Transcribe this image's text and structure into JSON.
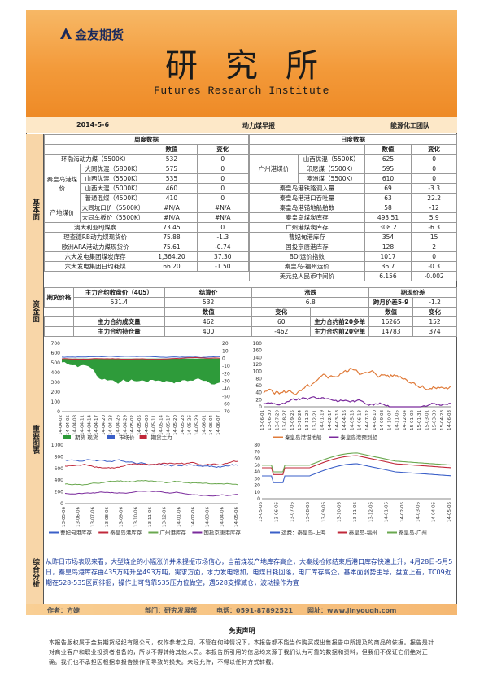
{
  "header": {
    "logo": "金友期货",
    "title": "研究所",
    "subtitle": "Futures Research Institute"
  },
  "report": {
    "date": "2014-5-6",
    "name": "动力煤早报",
    "team": "能源化工团队"
  },
  "sections": {
    "basic": "基本面",
    "futures": "资金面",
    "charts": "重要图表",
    "analysis": "综合分析"
  },
  "weekly": {
    "title": "周度数据",
    "col_value": "数值",
    "col_change": "变化",
    "rows": [
      {
        "label": "环渤海动力煤（5500K）",
        "value": "532",
        "change": "0"
      },
      {
        "group": "秦皇岛港煤价",
        "label": "大同优混（5800K）",
        "value": "575",
        "change": "0"
      },
      {
        "group": "",
        "label": "山西优混（5500K）",
        "value": "535",
        "change": "0"
      },
      {
        "group": "",
        "label": "山西大混（5000K）",
        "value": "460",
        "change": "0"
      },
      {
        "group": "",
        "label": "普通混煤（4500K）",
        "value": "410",
        "change": "0"
      },
      {
        "group": "产地煤价",
        "label": "大同坑口价（5500K）",
        "value": "#N/A",
        "change": "#N/A"
      },
      {
        "group": "",
        "label": "大同车板价（5500K）",
        "value": "#N/A",
        "change": "#N/A"
      },
      {
        "label": "澳大利亚BJ煤炭",
        "value": "73.45",
        "change": "0"
      },
      {
        "label": "理查德RB动力煤现货价",
        "value": "75.88",
        "change": "-1.3"
      },
      {
        "label": "欧洲ARA港动力煤现货价",
        "value": "75.61",
        "change": "-0.74"
      },
      {
        "label": "六大发电集团煤炭库存",
        "value": "1,364.20",
        "change": "37.30"
      },
      {
        "label": "六大发电集团日均耗煤",
        "value": "66.20",
        "change": "-1.50"
      }
    ]
  },
  "daily": {
    "title": "日度数据",
    "col_value": "数值",
    "col_change": "变化",
    "group": "广州港煤价",
    "rows": [
      {
        "label": "山西优混（5500K）",
        "value": "625",
        "change": "0"
      },
      {
        "label": "印尼煤（5500K）",
        "value": "595",
        "change": "0"
      },
      {
        "label": "澳洲煤（5500K）",
        "value": "610",
        "change": "0"
      },
      {
        "label": "秦皇岛港铁路调入量",
        "value": "69",
        "change": "-3.3"
      },
      {
        "label": "秦皇岛港港口吞吐量",
        "value": "63",
        "change": "22.2"
      },
      {
        "label": "秦皇岛港锚地船舶数",
        "value": "58",
        "change": "-12"
      },
      {
        "label": "秦皇岛煤炭库存",
        "value": "493.51",
        "change": "5.9"
      },
      {
        "label": "广州港煤炭库存",
        "value": "308.2",
        "change": "-6.3"
      },
      {
        "label": "曹妃甸港库存",
        "value": "354",
        "change": "15"
      },
      {
        "label": "国投京唐港库存",
        "value": "128",
        "change": "2"
      },
      {
        "label": "BDI运价指数",
        "value": "1017",
        "change": "0"
      },
      {
        "label": "秦皇岛-福州运价",
        "value": "36.7",
        "change": "-0.3"
      },
      {
        "label": "美元兑人民币中间价",
        "value": "6.156",
        "change": "-0.002"
      }
    ]
  },
  "futures": {
    "h1": "期货价格",
    "h2": "主力合约收盘价（405）",
    "h3": "结算价",
    "h4": "涨跌",
    "h5": "期现价差",
    "close": "531.4",
    "settle": "532",
    "chg": "6.8",
    "spread_label": "跨月价差5-9",
    "spread_val": "-1.2",
    "spread_top": "0",
    "col_value": "数值",
    "col_change": "变化",
    "oi_label": "主力合约成交量",
    "oi_val": "462",
    "oi_chg": "60",
    "hold_label": "主力合约持仓量",
    "hold_val": "400",
    "hold_chg": "-462",
    "long_label": "主力合约前20多单",
    "long_val": "16265",
    "long_chg": "152",
    "short_label": "主力合约前20空单",
    "short_val": "14783",
    "short_chg": "374"
  },
  "chart_data": [
    {
      "type": "area",
      "series": [
        {
          "name": "期货-现货",
          "color": "#2e9b3a"
        },
        {
          "name": "市场价",
          "color": "#3a5fc8"
        },
        {
          "name": "期货主力",
          "color": "#c0283a"
        }
      ],
      "x": [
        "14-04-02",
        "14-04-05",
        "14-04-08",
        "14-04-11",
        "14-04-14",
        "14-04-17",
        "14-04-20",
        "14-04-23",
        "14-04-26",
        "14-04-29",
        "14-05-02",
        "14-05-05",
        "14-05-08",
        "14-05-11",
        "14-05-14",
        "14-05-17",
        "14-05-20",
        "14-05-23",
        "14-05-26",
        "14-05-29",
        "14-06-01",
        "14-06-04",
        "14-06-07"
      ],
      "ylim_left": [
        0,
        700
      ],
      "ylim_right": [
        -70,
        20
      ]
    },
    {
      "type": "line",
      "series": [
        {
          "name": "秦皇岛港锚地船",
          "color": "#e07b3a"
        },
        {
          "name": "秦皇岛港预到船",
          "color": "#7a2a9c"
        }
      ],
      "x": [
        "13-06-01",
        "13-06-30",
        "13-07-29",
        "13-08-27",
        "13-09-25",
        "13-10-24",
        "13-11-22",
        "13-12-21",
        "14-01-19",
        "14-02-17",
        "14-03-18",
        "14-04-16",
        "14-05-15",
        "14-06-13",
        "14-07-12",
        "14-08-10",
        "14-09-08",
        "14-10-07",
        "14-11-05",
        "14-12-04",
        "15-01-02",
        "15-01-31",
        "15-03-01",
        "15-03-30",
        "15-04-28",
        "14-06-03"
      ],
      "ylim": [
        0,
        180
      ]
    },
    {
      "type": "line",
      "series": [
        {
          "name": "曹妃甸港库存",
          "color": "#3a5fc8"
        },
        {
          "name": "秦皇岛港库存",
          "color": "#c0283a"
        },
        {
          "name": "广州港库存",
          "color": "#6aa84f"
        },
        {
          "name": "国投京唐港库存",
          "color": "#7a2a9c"
        }
      ],
      "x": [
        "13-05-06",
        "13-06-06",
        "13-07-06",
        "13-08-06",
        "13-09-06",
        "13-10-06",
        "13-11-06",
        "13-12-06",
        "14-01-06",
        "14-02-06",
        "14-03-06",
        "14-04-06",
        "14-05-06"
      ],
      "ylim": [
        0,
        1000
      ]
    },
    {
      "type": "line",
      "series": [
        {
          "name": "运费：秦皇岛-上海",
          "color": "#3a5fc8"
        },
        {
          "name": "秦皇岛-福州",
          "color": "#c0283a"
        },
        {
          "name": "秦皇岛-广州",
          "color": "#6aa84f"
        }
      ],
      "x": [
        "13-05-06",
        "13-06-06",
        "13-07-06",
        "13-08-06",
        "13-09-06",
        "13-10-06",
        "13-11-06",
        "13-12-06",
        "14-01-06",
        "14-02-06",
        "14-03-06",
        "14-04-06",
        "14-05-06"
      ],
      "ylim": [
        0,
        80
      ]
    }
  ],
  "analysis": "从昨日市场表现来看，大型煤企的小幅涨价并未提振市场信心，当前煤炭产地库存高企，大秦线检修结束后港口库存快速上升，4月28日-5月5日，秦皇岛港库存由435万吨升至493万吨，需求方面，水力发电增加，电煤日耗回落，电厂库存高企。基本面弱势主导，盘面上看，TC09近期在528-535区间徘徊，操作上可背靠535压力位做空，遇528支撑减仓，波动操作为宜",
  "footer": {
    "author": "作者：方婕",
    "dept": "部门：研究发展部",
    "phone": "电话：0591-87892521",
    "web": "网址：www.jinyouqh.com"
  },
  "disclaimer": {
    "title": "免责声明",
    "text": "本报告版权属于金友期货经纪有限公司，仅作参考之用。不管在何种情况下，本报告都不能当作购买或出售报告中所提及的商品的依据。报告是针对商业客户和职业投资者准备的，所以不得转给其他人员。本报告所引用的信息均来源于我们认为可靠的数据和资料，但我们不保证它们绝对正确。我们也不承担因根据本报告操作而导致的损失。未经允许，不得以任何方式转载。"
  }
}
